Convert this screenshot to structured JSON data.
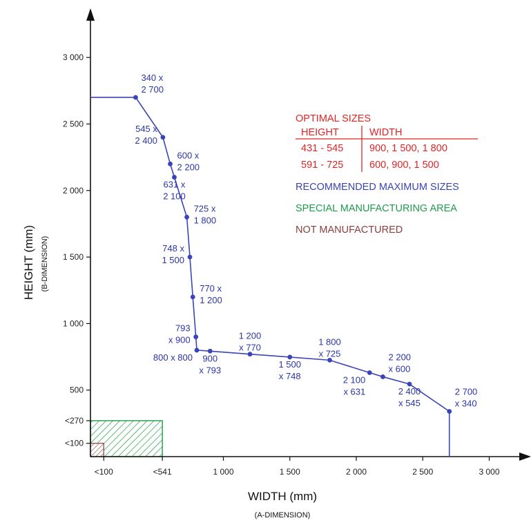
{
  "chart_data": {
    "type": "line",
    "xlabel": "WIDTH (mm)",
    "xlabel_sub": "(A-DIMENSION)",
    "ylabel": "HEIGHT (mm)",
    "ylabel_sub": "(B-DIMENSION)",
    "xlim": [
      0,
      3200
    ],
    "ylim": [
      0,
      3250
    ],
    "x_ticks": [
      {
        "value": 100,
        "label": "<100"
      },
      {
        "value": 541,
        "label": "<541"
      },
      {
        "value": 1000,
        "label": "1 000"
      },
      {
        "value": 1500,
        "label": "1 500"
      },
      {
        "value": 2000,
        "label": "2 000"
      },
      {
        "value": 2500,
        "label": "2 500"
      },
      {
        "value": 3000,
        "label": "3 000"
      }
    ],
    "y_ticks": [
      {
        "value": 100,
        "label": "<100"
      },
      {
        "value": 270,
        "label": "<270"
      },
      {
        "value": 500,
        "label": "500"
      },
      {
        "value": 1000,
        "label": "1 000"
      },
      {
        "value": 1500,
        "label": "1 500"
      },
      {
        "value": 2000,
        "label": "2 000"
      },
      {
        "value": 2500,
        "label": "2 500"
      },
      {
        "value": 3000,
        "label": "3 000"
      }
    ],
    "series": [
      {
        "name": "RECOMMENDED MAXIMUM SIZES",
        "color": "#3a44b8",
        "boundary_start": {
          "x": 0,
          "y": 2700
        },
        "boundary_end": {
          "x": 2700,
          "y": 0
        },
        "points": [
          {
            "x": 340,
            "y": 2700,
            "label": [
              "340 x",
              "2 700"
            ],
            "label_pos": "above-right"
          },
          {
            "x": 545,
            "y": 2400,
            "label": [
              "545 x",
              "2 400"
            ],
            "label_pos": "left"
          },
          {
            "x": 600,
            "y": 2200,
            "label": [
              "600 x",
              "2 200"
            ],
            "label_pos": "right"
          },
          {
            "x": 631,
            "y": 2100,
            "label": [
              "631 x",
              "2 100"
            ],
            "label_pos": "below"
          },
          {
            "x": 725,
            "y": 1800,
            "label": [
              "725 x",
              "1 800"
            ],
            "label_pos": "right"
          },
          {
            "x": 748,
            "y": 1500,
            "label": [
              "748 x",
              "1 500"
            ],
            "label_pos": "left"
          },
          {
            "x": 770,
            "y": 1200,
            "label": [
              "770 x",
              "1 200"
            ],
            "label_pos": "right"
          },
          {
            "x": 793,
            "y": 900,
            "label": [
              "793",
              "x 900"
            ],
            "label_pos": "left"
          },
          {
            "x": 800,
            "y": 800,
            "label": [
              "800 x 800"
            ],
            "label_pos": "below-left"
          },
          {
            "x": 900,
            "y": 793,
            "label": [
              "900",
              "x 793"
            ],
            "label_pos": "below"
          },
          {
            "x": 1200,
            "y": 770,
            "label": [
              "1 200",
              "x 770"
            ],
            "label_pos": "above"
          },
          {
            "x": 1500,
            "y": 748,
            "label": [
              "1 500",
              "x 748"
            ],
            "label_pos": "below"
          },
          {
            "x": 1800,
            "y": 725,
            "label": [
              "1 800",
              "x 725"
            ],
            "label_pos": "above"
          },
          {
            "x": 2100,
            "y": 631,
            "label": [
              "2 100",
              "x 631"
            ],
            "label_pos": "below-left"
          },
          {
            "x": 2200,
            "y": 600,
            "label": [
              "2 200",
              "x 600"
            ],
            "label_pos": "above-right"
          },
          {
            "x": 2400,
            "y": 545,
            "label": [
              "2 400",
              "x 545"
            ],
            "label_pos": "below"
          },
          {
            "x": 2700,
            "y": 340,
            "label": [
              "2 700",
              "x 340"
            ],
            "label_pos": "above-right"
          }
        ]
      }
    ],
    "areas": [
      {
        "name": "SPECIAL MANUFACTURING AREA",
        "color": "#1f9a4a",
        "x_max": 541,
        "y_max": 270
      },
      {
        "name": "NOT MANUFACTURED",
        "color": "#8a3d3d",
        "x_max": 100,
        "y_max": 100
      }
    ],
    "legend_position": "top-right",
    "optimal_sizes": {
      "title": "OPTIMAL SIZES",
      "color": "#e02424",
      "headers": [
        "HEIGHT",
        "WIDTH"
      ],
      "rows": [
        [
          "431 - 545",
          "900, 1 500, 1 800"
        ],
        [
          "591 - 725",
          "600, 900, 1 500"
        ]
      ]
    },
    "legend_items": [
      {
        "text": "RECOMMENDED MAXIMUM SIZES",
        "color": "#3a44b8"
      },
      {
        "text": "SPECIAL MANUFACTURING AREA",
        "color": "#1f9a4a"
      },
      {
        "text": "NOT MANUFACTURED",
        "color": "#8a3d3d"
      }
    ]
  }
}
